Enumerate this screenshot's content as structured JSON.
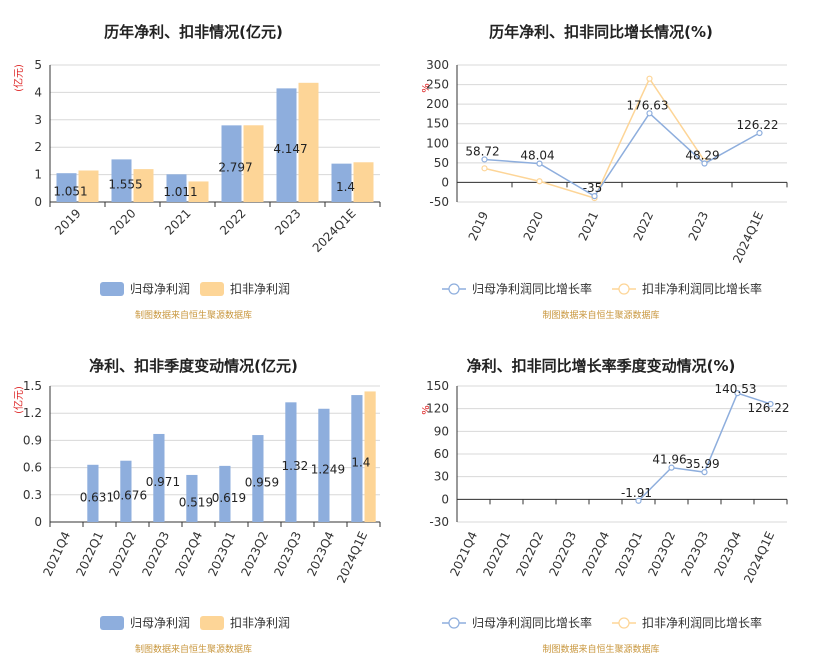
{
  "source_note": "制图数据来自恒生聚源数据库",
  "colors": {
    "primary": "#8eaedd",
    "secondary": "#fdd597",
    "grid": "#d8d8d8",
    "axis": "#333333",
    "unit": "#dd2222",
    "source": "#c8963c"
  },
  "chart_data": [
    {
      "type": "bar",
      "title": "历年净利、扣非情况(亿元)",
      "unit_label": "(亿元)",
      "categories": [
        "2019",
        "2020",
        "2021",
        "2022",
        "2023",
        "2024Q1E"
      ],
      "ylim": [
        0,
        5
      ],
      "yticks": [
        0,
        1,
        2,
        3,
        4,
        5
      ],
      "grid": true,
      "legend_position": "bottom",
      "series": [
        {
          "name": "归母净利润",
          "values": [
            1.051,
            1.555,
            1.011,
            2.797,
            4.147,
            1.4
          ],
          "labels": [
            "1.051",
            "1.555",
            "1.011",
            "2.797",
            "4.147",
            "1.4"
          ]
        },
        {
          "name": "扣非净利润",
          "values": [
            1.15,
            1.2,
            0.75,
            2.8,
            4.35,
            1.45
          ]
        }
      ]
    },
    {
      "type": "line",
      "title": "历年净利、扣非同比增长情况(%)",
      "unit_label": "%",
      "categories": [
        "2019",
        "2020",
        "2021",
        "2022",
        "2023",
        "2024Q1E"
      ],
      "ylim": [
        -50,
        300
      ],
      "yticks": [
        -50,
        0,
        50,
        100,
        150,
        200,
        250,
        300
      ],
      "grid": true,
      "legend_position": "bottom",
      "series": [
        {
          "name": "归母净利润同比增长率",
          "values": [
            58.72,
            48.04,
            -35,
            176.63,
            48.29,
            126.22
          ],
          "labels": [
            "58.72",
            "48.04",
            "-35",
            "176.63",
            "48.29",
            "126.22"
          ]
        },
        {
          "name": "扣非净利润同比增长率",
          "values": [
            36,
            3,
            -40,
            265,
            55,
            null
          ]
        }
      ]
    },
    {
      "type": "bar",
      "title": "净利、扣非季度变动情况(亿元)",
      "unit_label": "(亿元)",
      "categories": [
        "2021Q4",
        "2022Q1",
        "2022Q2",
        "2022Q3",
        "2022Q4",
        "2023Q1",
        "2023Q2",
        "2023Q3",
        "2023Q4",
        "2024Q1E"
      ],
      "ylim": [
        0,
        1.5
      ],
      "yticks": [
        0,
        0.3,
        0.6,
        0.9,
        1.2,
        1.5
      ],
      "grid": true,
      "legend_position": "bottom",
      "series": [
        {
          "name": "归母净利润",
          "values": [
            null,
            0.631,
            0.676,
            0.971,
            0.519,
            0.619,
            0.959,
            1.32,
            1.249,
            1.4
          ],
          "labels": [
            "",
            "0.631",
            "0.676",
            "0.971",
            "0.519",
            "0.619",
            "0.959",
            "1.32",
            "1.249",
            "1.4"
          ]
        },
        {
          "name": "扣非净利润",
          "values": [
            null,
            null,
            null,
            null,
            null,
            null,
            null,
            null,
            null,
            1.44
          ]
        }
      ]
    },
    {
      "type": "line",
      "title": "净利、扣非同比增长率季度变动情况(%)",
      "unit_label": "%",
      "categories": [
        "2021Q4",
        "2022Q1",
        "2022Q2",
        "2022Q3",
        "2022Q4",
        "2023Q1",
        "2023Q2",
        "2023Q3",
        "2023Q4",
        "2024Q1E"
      ],
      "ylim": [
        -30,
        150
      ],
      "yticks": [
        -30,
        0,
        30,
        60,
        90,
        120,
        150
      ],
      "grid": true,
      "legend_position": "bottom",
      "series": [
        {
          "name": "归母净利润同比增长率",
          "values": [
            null,
            null,
            null,
            null,
            null,
            -1.91,
            41.96,
            35.99,
            140.53,
            126.22
          ],
          "labels": [
            "",
            "",
            "",
            "",
            "",
            "-1.91",
            "41.96",
            "35.99",
            "140.53",
            "126.22"
          ]
        },
        {
          "name": "扣非净利润同比增长率",
          "values": [
            null,
            null,
            null,
            null,
            null,
            null,
            null,
            null,
            null,
            null
          ]
        }
      ]
    }
  ]
}
